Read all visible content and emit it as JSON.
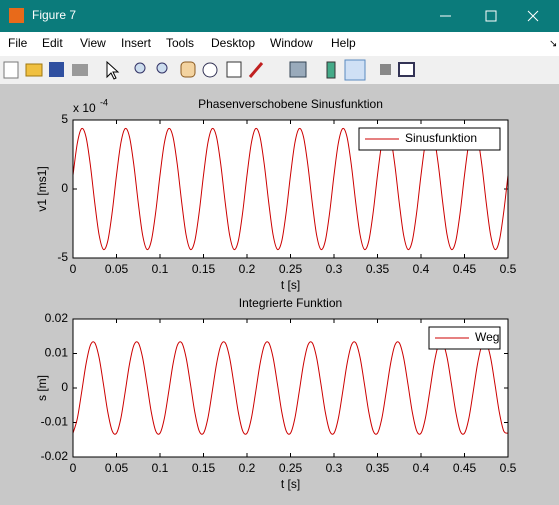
{
  "window": {
    "title": "Figure 7",
    "menu": [
      "File",
      "Edit",
      "View",
      "Insert",
      "Tools",
      "Desktop",
      "Window",
      "Help"
    ]
  },
  "chart_data": [
    {
      "type": "line",
      "title": "Phasenverschobene Sinusfunktion",
      "xlabel": "t [s]",
      "ylabel": "v1 [ms1]",
      "y_multiplier": {
        "base": "x 10",
        "exponent": "-4"
      },
      "x": [
        0,
        0.005,
        0.01,
        0.015,
        0.02,
        0.025,
        0.03,
        0.035,
        0.04,
        0.045,
        0.05,
        0.055,
        0.06,
        0.065,
        0.07,
        0.075,
        0.08,
        0.085,
        0.09,
        0.095,
        0.1,
        0.105,
        0.11,
        0.115,
        0.12,
        0.125,
        0.13,
        0.135,
        0.14,
        0.145,
        0.15,
        0.155,
        0.16,
        0.165,
        0.17,
        0.175,
        0.18,
        0.185,
        0.19,
        0.195,
        0.2,
        0.205,
        0.21,
        0.215,
        0.22,
        0.225,
        0.23,
        0.235,
        0.24,
        0.245,
        0.25,
        0.255,
        0.26,
        0.265,
        0.27,
        0.275,
        0.28,
        0.285,
        0.29,
        0.295,
        0.3,
        0.305,
        0.31,
        0.315,
        0.32,
        0.325,
        0.33,
        0.335,
        0.34,
        0.345,
        0.35,
        0.355,
        0.36,
        0.365,
        0.37,
        0.375,
        0.38,
        0.385,
        0.39,
        0.395,
        0.4,
        0.405,
        0.41,
        0.415,
        0.42,
        0.425,
        0.43,
        0.435,
        0.44,
        0.445,
        0.45,
        0.455,
        0.46,
        0.465,
        0.47,
        0.475,
        0.48,
        0.485,
        0.49,
        0.495,
        0.5
      ],
      "series": [
        {
          "name": "Sinusfunktion",
          "color": "#cc0000",
          "values": [
            1.0,
            3.33,
            4.38,
            3.76,
            1.71,
            -1.0,
            -3.33,
            -4.38,
            -3.76,
            -1.71,
            1.0,
            3.33,
            4.38,
            3.76,
            1.71,
            -1.0,
            -3.33,
            -4.38,
            -3.76,
            -1.71,
            1.0,
            3.33,
            4.38,
            3.76,
            1.71,
            -1.0,
            -3.33,
            -4.38,
            -3.76,
            -1.71,
            1.0,
            3.33,
            4.38,
            3.76,
            1.71,
            -1.0,
            -3.33,
            -4.38,
            -3.76,
            -1.71,
            1.0,
            3.33,
            4.38,
            3.76,
            1.71,
            -1.0,
            -3.33,
            -4.38,
            -3.76,
            -1.71,
            1.0,
            3.33,
            4.38,
            3.76,
            1.71,
            -1.0,
            -3.33,
            -4.38,
            -3.76,
            -1.71,
            1.0,
            3.33,
            4.38,
            3.76,
            1.71,
            -1.0,
            -3.33,
            -4.38,
            -3.76,
            -1.71,
            1.0,
            3.33,
            4.38,
            3.76,
            1.71,
            -1.0,
            -3.33,
            -4.38,
            -3.76,
            -1.71,
            1.0,
            3.33,
            4.38,
            3.76,
            1.71,
            -1.0,
            -3.33,
            -4.38,
            -3.76,
            -1.71,
            1.0,
            3.33,
            4.38,
            3.76,
            1.71,
            -1.0,
            -3.33,
            -4.38,
            -3.76,
            -1.71,
            1.0
          ]
        }
      ],
      "xlim": [
        0,
        0.5
      ],
      "xticks": [
        0,
        0.05,
        0.1,
        0.15,
        0.2,
        0.25,
        0.3,
        0.35,
        0.4,
        0.45,
        0.5
      ],
      "ylim": [
        -5,
        5
      ],
      "yticks": [
        -5,
        0,
        5
      ],
      "legend": "northeast"
    },
    {
      "type": "line",
      "title": "Integrierte Funktion",
      "xlabel": "t [s]",
      "ylabel": "s [m]",
      "x": [
        0,
        0.005,
        0.01,
        0.015,
        0.02,
        0.025,
        0.03,
        0.035,
        0.04,
        0.045,
        0.05,
        0.055,
        0.06,
        0.065,
        0.07,
        0.075,
        0.08,
        0.085,
        0.09,
        0.095,
        0.1,
        0.105,
        0.11,
        0.115,
        0.12,
        0.125,
        0.13,
        0.135,
        0.14,
        0.145,
        0.15,
        0.155,
        0.16,
        0.165,
        0.17,
        0.175,
        0.18,
        0.185,
        0.19,
        0.195,
        0.2,
        0.205,
        0.21,
        0.215,
        0.22,
        0.225,
        0.23,
        0.235,
        0.24,
        0.245,
        0.25,
        0.255,
        0.26,
        0.265,
        0.27,
        0.275,
        0.28,
        0.285,
        0.29,
        0.295,
        0.3,
        0.305,
        0.31,
        0.315,
        0.32,
        0.325,
        0.33,
        0.335,
        0.34,
        0.345,
        0.35,
        0.355,
        0.36,
        0.365,
        0.37,
        0.375,
        0.38,
        0.385,
        0.39,
        0.395,
        0.4,
        0.405,
        0.41,
        0.415,
        0.42,
        0.425,
        0.43,
        0.435,
        0.44,
        0.445,
        0.45,
        0.455,
        0.46,
        0.465,
        0.47,
        0.475,
        0.48,
        0.485,
        0.49,
        0.495,
        0.5
      ],
      "series": [
        {
          "name": "Weg",
          "color": "#cc0000",
          "values": [
            -0.0131,
            -0.0088,
            -0.0011,
            0.007,
            0.0124,
            0.0131,
            0.0088,
            0.0011,
            -0.007,
            -0.0124,
            -0.0131,
            -0.0088,
            -0.0011,
            0.007,
            0.0124,
            0.0131,
            0.0088,
            0.0011,
            -0.007,
            -0.0124,
            -0.0131,
            -0.0088,
            -0.0011,
            0.007,
            0.0124,
            0.0131,
            0.0088,
            0.0011,
            -0.007,
            -0.0124,
            -0.0131,
            -0.0088,
            -0.0011,
            0.007,
            0.0124,
            0.0131,
            0.0088,
            0.0011,
            -0.007,
            -0.0124,
            -0.0131,
            -0.0088,
            -0.0011,
            0.007,
            0.0124,
            0.0131,
            0.0088,
            0.0011,
            -0.007,
            -0.0124,
            -0.0131,
            -0.0088,
            -0.0011,
            0.007,
            0.0124,
            0.0131,
            0.0088,
            0.0011,
            -0.007,
            -0.0124,
            -0.0131,
            -0.0088,
            -0.0011,
            0.007,
            0.0124,
            0.0131,
            0.0088,
            0.0011,
            -0.007,
            -0.0124,
            -0.0131,
            -0.0088,
            -0.0011,
            0.007,
            0.0124,
            0.0131,
            0.0088,
            0.0011,
            -0.007,
            -0.0124,
            -0.0131,
            -0.0088,
            -0.0011,
            0.007,
            0.0124,
            0.0131,
            0.0088,
            0.0011,
            -0.007,
            -0.0124,
            -0.0131,
            -0.0088,
            -0.0011,
            0.007,
            0.0124,
            0.0131,
            0.0088,
            0.0011,
            -0.007,
            -0.0124,
            -0.0131
          ]
        }
      ],
      "xlim": [
        0,
        0.5
      ],
      "xticks": [
        0,
        0.05,
        0.1,
        0.15,
        0.2,
        0.25,
        0.3,
        0.35,
        0.4,
        0.45,
        0.5
      ],
      "ylim": [
        -0.02,
        0.02
      ],
      "yticks": [
        -0.02,
        -0.01,
        0,
        0.01,
        0.02
      ],
      "legend": "northeast"
    }
  ]
}
